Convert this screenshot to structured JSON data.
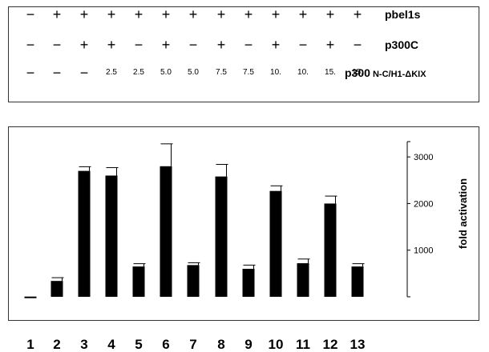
{
  "conditions": {
    "rows": [
      {
        "label": "pbel1s",
        "sublabel": "",
        "size": "big",
        "cells": [
          "−",
          "+",
          "+",
          "+",
          "+",
          "+",
          "+",
          "+",
          "+",
          "+",
          "+",
          "+",
          "+"
        ]
      },
      {
        "label": "p300C",
        "sublabel": "",
        "size": "big",
        "cells": [
          "−",
          "−",
          "+",
          "+",
          "−",
          "+",
          "−",
          "+",
          "−",
          "+",
          "−",
          "+",
          "−"
        ]
      },
      {
        "label": "p300",
        "sublabel": "N-C/H1-ΔKIX",
        "size": "small",
        "cells": [
          "−",
          "−",
          "−",
          "2.5",
          "2.5",
          "5.0",
          "5.0",
          "7.5",
          "7.5",
          "10.",
          "10.",
          "15.",
          "15."
        ]
      }
    ]
  },
  "chart_data": {
    "type": "bar",
    "categories": [
      "1",
      "2",
      "3",
      "4",
      "5",
      "6",
      "7",
      "8",
      "9",
      "10",
      "11",
      "12",
      "13"
    ],
    "values": [
      5,
      340,
      2700,
      2600,
      650,
      2800,
      680,
      2580,
      600,
      2270,
      720,
      2000,
      650
    ],
    "errors": [
      0,
      70,
      90,
      170,
      60,
      480,
      50,
      260,
      80,
      110,
      90,
      160,
      60
    ],
    "ylabel": "fold activation",
    "yticks": [
      1000,
      2000,
      3000
    ],
    "ylim": [
      0,
      3500
    ],
    "y_axis_position": "right",
    "bar_color": "#000000"
  }
}
